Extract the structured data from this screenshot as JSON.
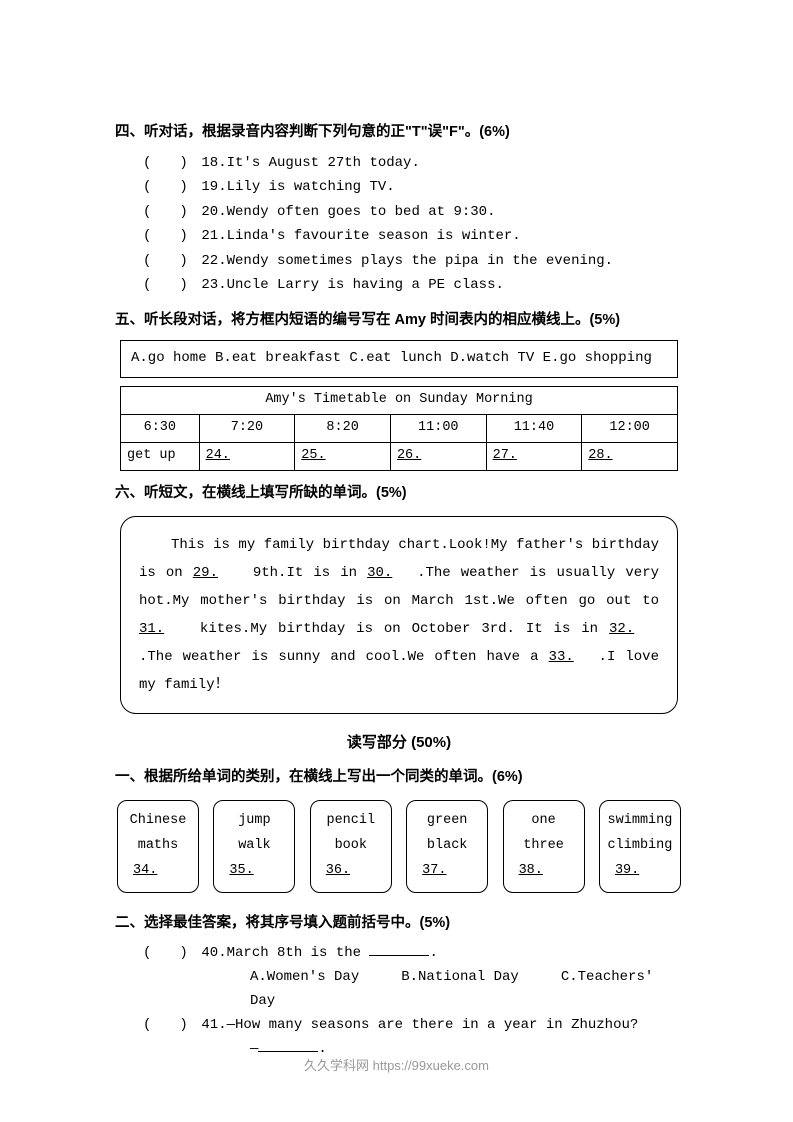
{
  "section4": {
    "heading": "四、听对话，根据录音内容判断下列句意的正\"T\"误\"F\"。(6%)",
    "items": [
      {
        "num": "18",
        "text": "It's August 27th today."
      },
      {
        "num": "19",
        "text": "Lily is watching TV."
      },
      {
        "num": "20",
        "text": "Wendy often goes to bed at 9:30."
      },
      {
        "num": "21",
        "text": "Linda's favourite season is winter."
      },
      {
        "num": "22",
        "text": "Wendy sometimes plays the pipa in the evening."
      },
      {
        "num": "23",
        "text": "Uncle Larry is having a PE class."
      }
    ]
  },
  "section5": {
    "heading": "五、听长段对话，将方框内短语的编号写在 Amy 时间表内的相应横线上。(5%)",
    "options": "A.go home   B.eat breakfast   C.eat lunch   D.watch TV   E.go shopping",
    "table": {
      "title": "Amy's Timetable on Sunday Morning",
      "times": [
        "6:30",
        "7:20",
        "8:20",
        "11:00",
        "11:40",
        "12:00"
      ],
      "firstCell": "get up",
      "blanks": [
        "24.",
        "25.",
        "26.",
        "27.",
        "28."
      ]
    }
  },
  "section6": {
    "heading": "六、听短文，在横线上填写所缺的单词。(5%)",
    "passage": {
      "p1": "This is my family birthday chart.Look!My father's birthday is on",
      "b1": "29.",
      "p2": " 9th.It is in ",
      "b2": "30.",
      "p3": ".The weather is usually very hot.My mother's birthday is on March 1st.We often go out to ",
      "b3": "31.",
      "p4": " kites.My birthday is on October 3rd. It is in ",
      "b4": "32.",
      "p5": ".The weather is sunny and cool.We often have a ",
      "b5": "33.",
      "p6": ".I love my family！"
    }
  },
  "readingHeading": "读写部分 (50%)",
  "sectionR1": {
    "heading": "一、根据所给单词的类别，在横线上写出一个同类的单词。(6%)",
    "boxes": [
      {
        "w1": "Chinese",
        "w2": "maths",
        "num": "34."
      },
      {
        "w1": "jump",
        "w2": "walk",
        "num": "35."
      },
      {
        "w1": "pencil",
        "w2": "book",
        "num": "36."
      },
      {
        "w1": "green",
        "w2": "black",
        "num": "37."
      },
      {
        "w1": "one",
        "w2": "three",
        "num": "38."
      },
      {
        "w1": "swimming",
        "w2": "climbing",
        "num": "39."
      }
    ]
  },
  "sectionR2": {
    "heading": "二、选择最佳答案，将其序号填入题前括号中。(5%)",
    "q40": {
      "line": "40.March 8th is the ",
      "end": ".",
      "optA": "A.Women's Day",
      "optB": "B.National Day",
      "optC": "C.Teachers' Day"
    },
    "q41": {
      "line": "41.—How many seasons are there in a year in Zhuzhou?",
      "dash": "—",
      "end": "."
    }
  },
  "footer": "久久学科网 https://99xueke.com"
}
